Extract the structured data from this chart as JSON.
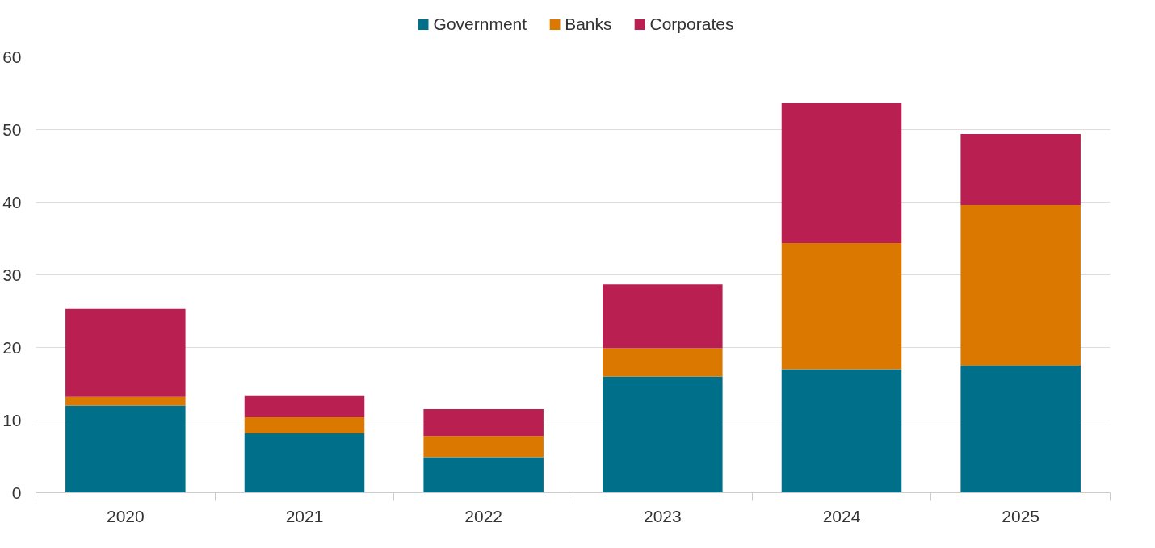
{
  "chart_data": {
    "type": "bar",
    "stacked": true,
    "categories": [
      "2020",
      "2021",
      "2022",
      "2023",
      "2024",
      "2025"
    ],
    "series": [
      {
        "name": "Government",
        "color": "#006f8a",
        "values": [
          12.0,
          8.2,
          4.9,
          16.0,
          17.0,
          17.5
        ]
      },
      {
        "name": "Banks",
        "color": "#db7800",
        "values": [
          1.2,
          2.2,
          2.9,
          3.9,
          17.4,
          22.1
        ]
      },
      {
        "name": "Corporates",
        "color": "#b92051",
        "values": [
          12.1,
          2.9,
          3.7,
          8.8,
          19.2,
          9.8
        ]
      }
    ],
    "ylim": [
      0,
      60
    ],
    "yticks": [
      0,
      10,
      20,
      30,
      40,
      50,
      60
    ],
    "grid": "y",
    "legend": "top"
  }
}
